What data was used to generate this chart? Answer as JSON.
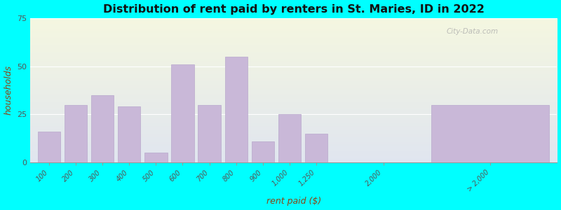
{
  "title": "Distribution of rent paid by renters in St. Maries, ID in 2022",
  "xlabel": "rent paid ($)",
  "ylabel": "households",
  "bar_color": "#c9b8d8",
  "bar_edge_color": "#b8a8cc",
  "background_color": "#00ffff",
  "ylim": [
    0,
    75
  ],
  "yticks": [
    0,
    25,
    50,
    75
  ],
  "categories": [
    "100",
    "200",
    "300",
    "400",
    "500",
    "600",
    "700",
    "800",
    "900",
    "1,000",
    "1,250",
    "2,000",
    "> 2,000"
  ],
  "values": [
    16,
    30,
    35,
    29,
    5,
    51,
    30,
    55,
    11,
    25,
    15,
    0,
    30
  ],
  "watermark": "City-Data.com",
  "grad_topleft": [
    0.88,
    0.96,
    0.86
  ],
  "grad_topright": [
    0.94,
    0.98,
    0.9
  ],
  "grad_bottomleft": [
    0.92,
    0.9,
    0.96
  ],
  "grad_bottomright": [
    0.94,
    0.95,
    0.94
  ]
}
